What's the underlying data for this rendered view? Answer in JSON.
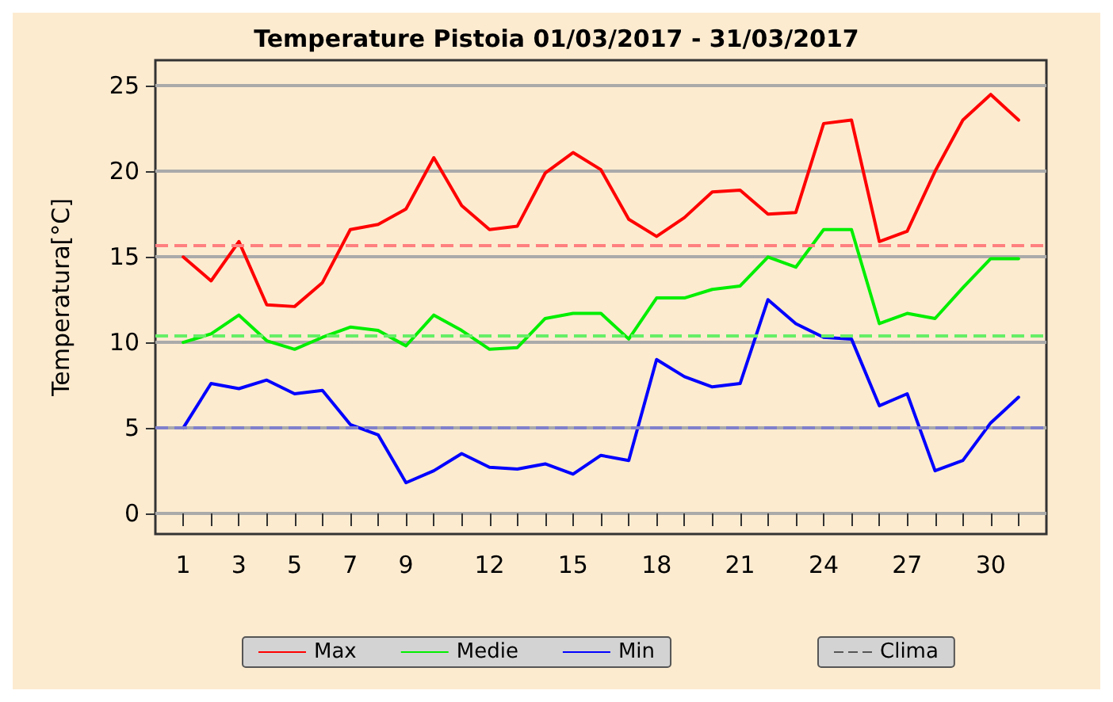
{
  "chart_data": {
    "type": "line",
    "title": "Temperature Pistoia 01/03/2017 - 31/03/2017",
    "ylabel": "Temperatura[°C]",
    "x": [
      1,
      2,
      3,
      4,
      5,
      6,
      7,
      8,
      9,
      10,
      11,
      12,
      13,
      14,
      15,
      16,
      17,
      18,
      19,
      20,
      21,
      22,
      23,
      24,
      25,
      26,
      27,
      28,
      29,
      30,
      31
    ],
    "series": [
      {
        "name": "Max",
        "color": "#ff0000",
        "values": [
          15,
          13.6,
          15.9,
          12.2,
          12.1,
          13.5,
          16.6,
          16.9,
          17.8,
          20.8,
          18,
          16.6,
          16.8,
          19.9,
          21.1,
          20.1,
          17.2,
          16.2,
          17.3,
          18.8,
          18.9,
          17.5,
          17.6,
          22.8,
          23,
          15.9,
          16.5,
          20,
          23,
          24.5,
          23
        ]
      },
      {
        "name": "Medie",
        "color": "#00ee00",
        "values": [
          10,
          10.5,
          11.6,
          10.1,
          9.6,
          10.3,
          10.9,
          10.7,
          9.8,
          11.6,
          10.7,
          9.6,
          9.7,
          11.4,
          11.7,
          11.7,
          10.2,
          12.6,
          12.6,
          13.1,
          13.3,
          15,
          14.4,
          16.6,
          16.6,
          11.1,
          11.7,
          11.4,
          13.2,
          14.9,
          14.9
        ]
      },
      {
        "name": "Min",
        "color": "#0000ff",
        "values": [
          5,
          7.6,
          7.3,
          7.8,
          7,
          7.2,
          5.2,
          4.6,
          1.8,
          2.5,
          3.5,
          2.7,
          2.6,
          2.9,
          2.3,
          3.4,
          3.1,
          9,
          8,
          7.4,
          7.6,
          12.5,
          11.1,
          10.3,
          10.2,
          6.3,
          7,
          2.5,
          3.1,
          5.3,
          6.8
        ]
      }
    ],
    "ref_lines": [
      {
        "axis": "y",
        "value": 15.7,
        "color": "#ff8080",
        "line_style": "dashed"
      },
      {
        "axis": "y",
        "value": 10.4,
        "color": "#66ee66",
        "line_style": "dashed"
      },
      {
        "axis": "y",
        "value": 5,
        "color": "#8080cc",
        "line_style": "dashed"
      }
    ],
    "xlim": [
      0,
      32
    ],
    "xticks": [
      1,
      {
        "value": 2,
        "label": null
      },
      3,
      {
        "value": 4,
        "label": null
      },
      5,
      {
        "value": 6,
        "label": null
      },
      7,
      {
        "value": 8,
        "label": null
      },
      9,
      {
        "value": 10,
        "label": null
      },
      {
        "value": 11,
        "label": null
      },
      12,
      {
        "value": 13,
        "label": null
      },
      {
        "value": 14,
        "label": null
      },
      15,
      {
        "value": 16,
        "label": null
      },
      {
        "value": 17,
        "label": null
      },
      18,
      {
        "value": 19,
        "label": null
      },
      {
        "value": 20,
        "label": null
      },
      21,
      {
        "value": 22,
        "label": null
      },
      {
        "value": 23,
        "label": null
      },
      24,
      {
        "value": 25,
        "label": null
      },
      {
        "value": 26,
        "label": null
      },
      27,
      {
        "value": 28,
        "label": null
      },
      {
        "value": 29,
        "label": null
      },
      30,
      {
        "value": 31,
        "label": null
      }
    ],
    "ylim": [
      -1.2,
      26.5
    ],
    "yticks": [
      0,
      5,
      10,
      15,
      20,
      25
    ],
    "annotations": [
      "Clima"
    ],
    "grid": "y",
    "legend": "bottom",
    "marker": "none",
    "line_style": "solid"
  }
}
